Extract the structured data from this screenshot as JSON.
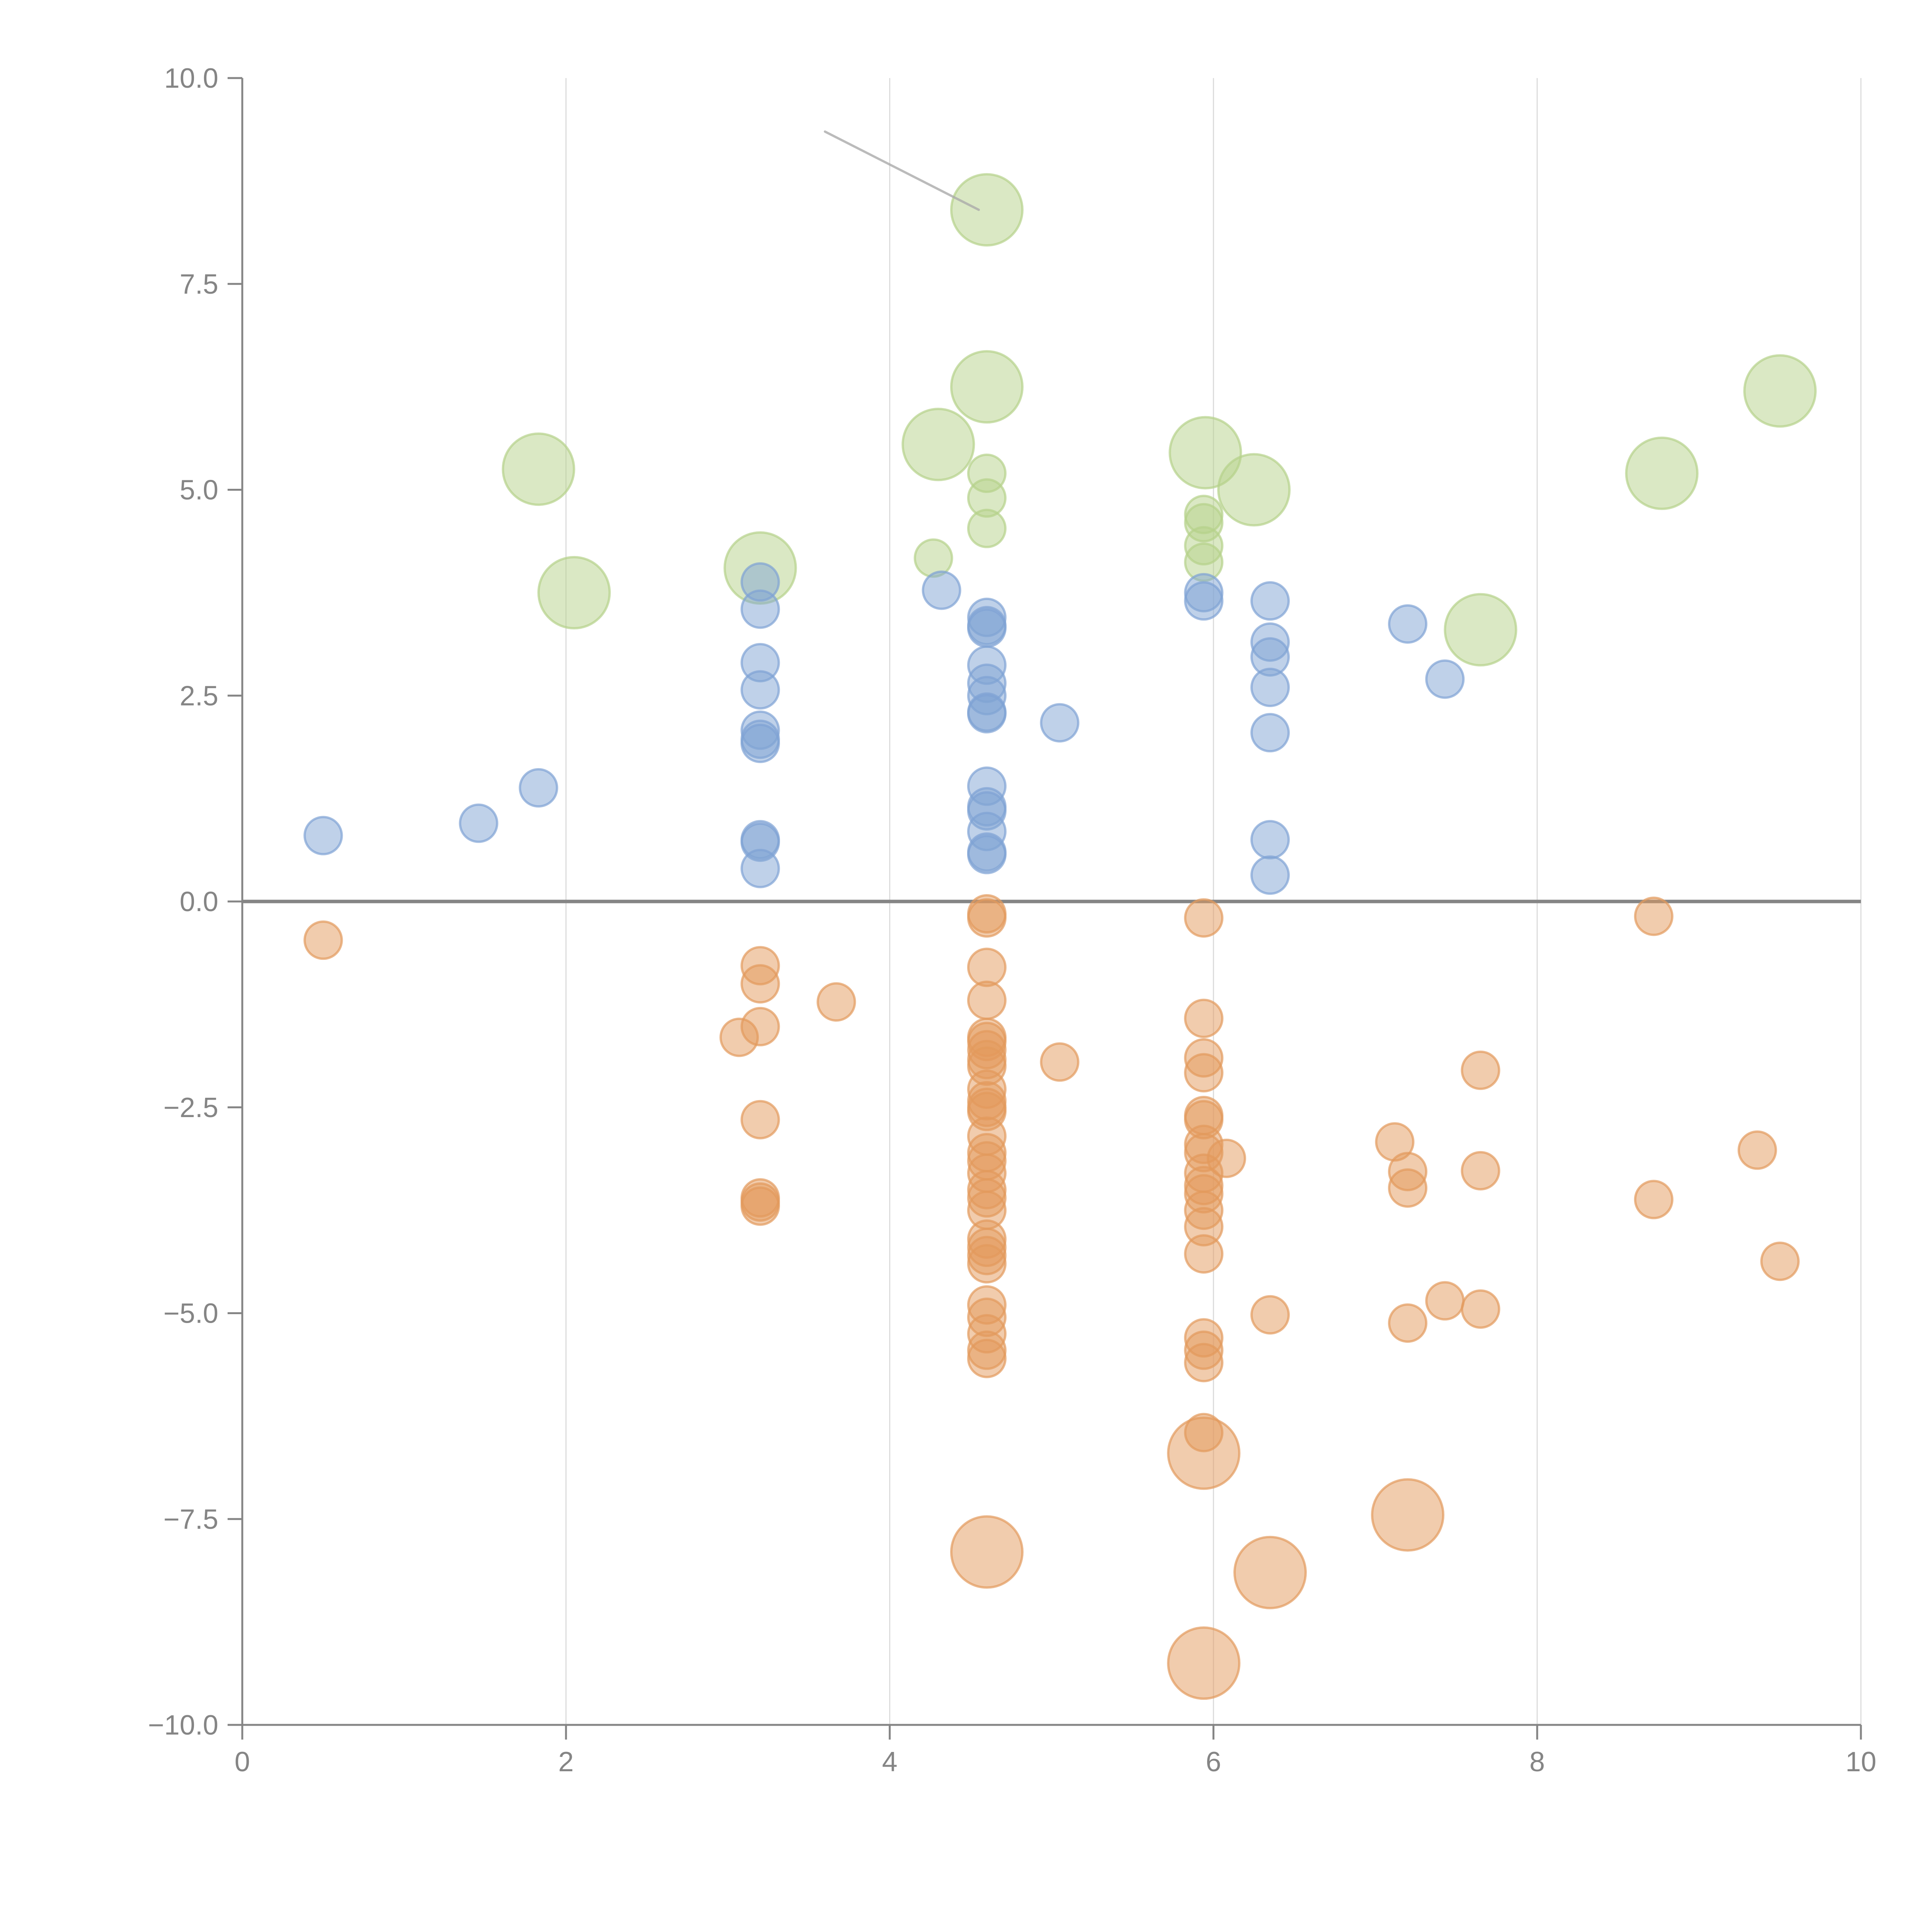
{
  "chart_data": {
    "type": "scatter",
    "title": "",
    "xlabel": "",
    "ylabel": "",
    "xlim": [
      0,
      10
    ],
    "ylim": [
      -10,
      10
    ],
    "grid": "vertical",
    "legend": "none",
    "x_ticks": [
      "0",
      "2",
      "4",
      "6",
      "8",
      "10"
    ],
    "y_ticks": [
      "−10.0",
      "−7.5",
      "−5.0",
      "−2.5",
      "0.0",
      "2.5",
      "5.0",
      "7.5",
      "10.0"
    ],
    "x_tick_values": [
      0,
      2,
      4,
      6,
      8,
      10
    ],
    "y_tick_values": [
      -10,
      -7.5,
      -5,
      -2.5,
      0,
      2.5,
      5,
      7.5,
      10
    ],
    "annotation_line": {
      "from": [
        3.6,
        9.35
      ],
      "to": [
        4.55,
        8.4
      ]
    },
    "series": [
      {
        "name": "green",
        "color": "#b5d18a",
        "points": [
          [
            4.6,
            8.4,
            3
          ],
          [
            4.6,
            6.25,
            3
          ],
          [
            4.3,
            5.55,
            3
          ],
          [
            5.95,
            5.45,
            3
          ],
          [
            6.25,
            5.0,
            3
          ],
          [
            1.83,
            5.25,
            3
          ],
          [
            2.05,
            3.75,
            3
          ],
          [
            3.2,
            4.05,
            3
          ],
          [
            7.65,
            3.3,
            3
          ],
          [
            8.77,
            5.2,
            3
          ],
          [
            9.5,
            6.2,
            3
          ],
          [
            4.6,
            5.2,
            1
          ],
          [
            4.6,
            4.9,
            1
          ],
          [
            4.6,
            4.53,
            1
          ],
          [
            4.27,
            4.17,
            1
          ],
          [
            5.94,
            4.7,
            1
          ],
          [
            5.94,
            4.6,
            1
          ],
          [
            5.94,
            4.32,
            1
          ],
          [
            5.94,
            4.12,
            1
          ]
        ]
      },
      {
        "name": "blue",
        "color": "#7fa3d4",
        "points": [
          [
            0.5,
            0.8,
            1
          ],
          [
            1.46,
            0.95,
            1
          ],
          [
            1.83,
            1.38,
            1
          ],
          [
            3.2,
            3.88,
            1
          ],
          [
            3.2,
            3.55,
            1
          ],
          [
            3.2,
            2.9,
            1
          ],
          [
            3.2,
            2.57,
            1
          ],
          [
            3.2,
            2.08,
            1
          ],
          [
            3.2,
            1.97,
            1
          ],
          [
            3.2,
            1.92,
            1
          ],
          [
            3.2,
            0.75,
            1
          ],
          [
            3.2,
            0.72,
            1
          ],
          [
            3.2,
            0.4,
            1
          ],
          [
            4.32,
            3.78,
            1
          ],
          [
            4.6,
            3.45,
            1
          ],
          [
            4.6,
            3.35,
            1
          ],
          [
            4.6,
            3.32,
            1
          ],
          [
            4.6,
            2.87,
            1
          ],
          [
            4.6,
            2.65,
            1
          ],
          [
            4.6,
            2.5,
            1
          ],
          [
            4.6,
            2.3,
            1
          ],
          [
            4.6,
            2.28,
            1
          ],
          [
            4.6,
            1.4,
            1
          ],
          [
            4.6,
            1.15,
            1
          ],
          [
            4.6,
            1.1,
            1
          ],
          [
            4.6,
            0.85,
            1
          ],
          [
            4.6,
            0.6,
            1
          ],
          [
            4.6,
            0.57,
            1
          ],
          [
            5.05,
            2.17,
            1
          ],
          [
            5.94,
            3.75,
            1
          ],
          [
            5.94,
            3.65,
            1
          ],
          [
            6.35,
            3.65,
            1
          ],
          [
            6.35,
            3.15,
            1
          ],
          [
            6.35,
            2.97,
            1
          ],
          [
            6.35,
            2.6,
            1
          ],
          [
            6.35,
            2.05,
            1
          ],
          [
            6.35,
            0.75,
            1
          ],
          [
            6.35,
            0.32,
            1
          ],
          [
            7.2,
            3.37,
            1
          ],
          [
            7.43,
            2.7,
            1
          ]
        ]
      },
      {
        "name": "orange",
        "color": "#e39a5c",
        "points": [
          [
            0.5,
            -0.47,
            1
          ],
          [
            3.07,
            -1.65,
            1
          ],
          [
            3.2,
            -0.78,
            1
          ],
          [
            3.2,
            -1.0,
            1
          ],
          [
            3.2,
            -1.52,
            1
          ],
          [
            3.2,
            -2.65,
            1
          ],
          [
            3.2,
            -3.6,
            1
          ],
          [
            3.2,
            -3.65,
            1
          ],
          [
            3.2,
            -3.7,
            1
          ],
          [
            3.67,
            -1.22,
            1
          ],
          [
            4.6,
            -0.15,
            1
          ],
          [
            4.6,
            -0.2,
            1
          ],
          [
            4.6,
            -0.8,
            1
          ],
          [
            4.6,
            -1.2,
            1
          ],
          [
            4.6,
            -1.65,
            1
          ],
          [
            4.6,
            -1.7,
            1
          ],
          [
            4.6,
            -1.8,
            1
          ],
          [
            4.6,
            -1.92,
            1
          ],
          [
            4.6,
            -2.0,
            1
          ],
          [
            4.6,
            -2.28,
            1
          ],
          [
            4.6,
            -2.42,
            1
          ],
          [
            4.6,
            -2.5,
            1
          ],
          [
            4.6,
            -2.55,
            1
          ],
          [
            4.6,
            -2.85,
            1
          ],
          [
            4.6,
            -3.05,
            1
          ],
          [
            4.6,
            -3.15,
            1
          ],
          [
            4.6,
            -3.3,
            1
          ],
          [
            4.6,
            -3.5,
            1
          ],
          [
            4.6,
            -3.6,
            1
          ],
          [
            4.6,
            -3.75,
            1
          ],
          [
            4.6,
            -4.1,
            1
          ],
          [
            4.6,
            -4.2,
            1
          ],
          [
            4.6,
            -4.3,
            1
          ],
          [
            4.6,
            -4.4,
            1
          ],
          [
            4.6,
            -4.9,
            1
          ],
          [
            4.6,
            -5.05,
            1
          ],
          [
            4.6,
            -5.25,
            1
          ],
          [
            4.6,
            -5.45,
            1
          ],
          [
            4.6,
            -5.55,
            1
          ],
          [
            4.6,
            -7.9,
            3
          ],
          [
            5.05,
            -1.95,
            1
          ],
          [
            5.94,
            -0.2,
            1
          ],
          [
            5.94,
            -1.42,
            1
          ],
          [
            5.94,
            -1.9,
            1
          ],
          [
            5.94,
            -2.08,
            1
          ],
          [
            5.94,
            -2.6,
            1
          ],
          [
            5.94,
            -2.65,
            1
          ],
          [
            5.94,
            -2.95,
            1
          ],
          [
            5.94,
            -3.05,
            1
          ],
          [
            5.94,
            -3.3,
            1
          ],
          [
            5.94,
            -3.45,
            1
          ],
          [
            5.94,
            -3.55,
            1
          ],
          [
            5.94,
            -3.75,
            1
          ],
          [
            5.94,
            -3.95,
            1
          ],
          [
            5.94,
            -4.28,
            1
          ],
          [
            5.94,
            -5.3,
            1
          ],
          [
            5.94,
            -5.45,
            1
          ],
          [
            5.94,
            -5.6,
            1
          ],
          [
            5.94,
            -6.45,
            1
          ],
          [
            5.94,
            -6.7,
            3
          ],
          [
            5.94,
            -9.25,
            3
          ],
          [
            6.08,
            -3.12,
            1
          ],
          [
            6.35,
            -5.02,
            1
          ],
          [
            6.35,
            -8.15,
            3
          ],
          [
            7.12,
            -2.92,
            1
          ],
          [
            7.2,
            -3.28,
            1
          ],
          [
            7.2,
            -3.48,
            1
          ],
          [
            7.2,
            -5.12,
            1
          ],
          [
            7.2,
            -7.45,
            3
          ],
          [
            7.43,
            -4.85,
            1
          ],
          [
            7.65,
            -2.05,
            1
          ],
          [
            7.65,
            -3.27,
            1
          ],
          [
            7.65,
            -4.95,
            1
          ],
          [
            8.72,
            -0.18,
            1
          ],
          [
            8.72,
            -3.62,
            1
          ],
          [
            9.36,
            -3.02,
            1
          ],
          [
            9.5,
            -4.37,
            1
          ]
        ]
      }
    ]
  }
}
